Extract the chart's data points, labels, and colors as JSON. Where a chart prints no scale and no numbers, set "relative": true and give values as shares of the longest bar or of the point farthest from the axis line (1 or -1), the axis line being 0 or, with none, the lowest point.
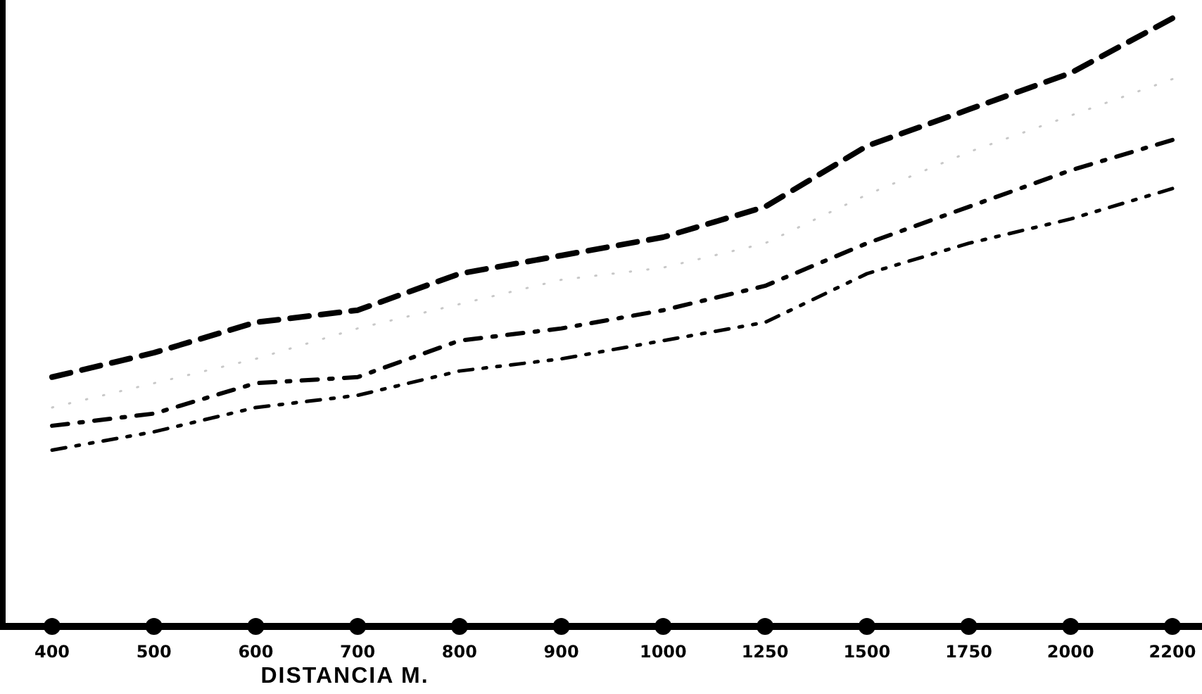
{
  "chart_data": {
    "type": "line",
    "relative": true,
    "xlabel": "DISTANCIA M.",
    "categories": [
      "400",
      "500",
      "600",
      "700",
      "800",
      "900",
      "1000",
      "1250",
      "1500",
      "1750",
      "2000",
      "2200"
    ],
    "series": [
      {
        "color": "#000000",
        "line_style": "dashed",
        "values": [
          0.41,
          0.45,
          0.5,
          0.52,
          0.58,
          0.61,
          0.64,
          0.69,
          0.79,
          0.85,
          0.91,
          1
        ]
      },
      {
        "color": "#c8c8c8",
        "line_style": "dotted",
        "values": [
          0.36,
          0.4,
          0.44,
          0.49,
          0.53,
          0.57,
          0.59,
          0.63,
          0.71,
          0.78,
          0.84,
          0.9
        ]
      },
      {
        "color": "#000000",
        "line_style": "dashdot",
        "values": [
          0.33,
          0.35,
          0.4,
          0.41,
          0.47,
          0.49,
          0.52,
          0.56,
          0.63,
          0.69,
          0.75,
          0.8
        ]
      },
      {
        "color": "#000000",
        "line_style": "dashdotdot",
        "values": [
          0.29,
          0.32,
          0.36,
          0.38,
          0.42,
          0.44,
          0.47,
          0.5,
          0.58,
          0.63,
          0.67,
          0.72
        ]
      }
    ]
  }
}
